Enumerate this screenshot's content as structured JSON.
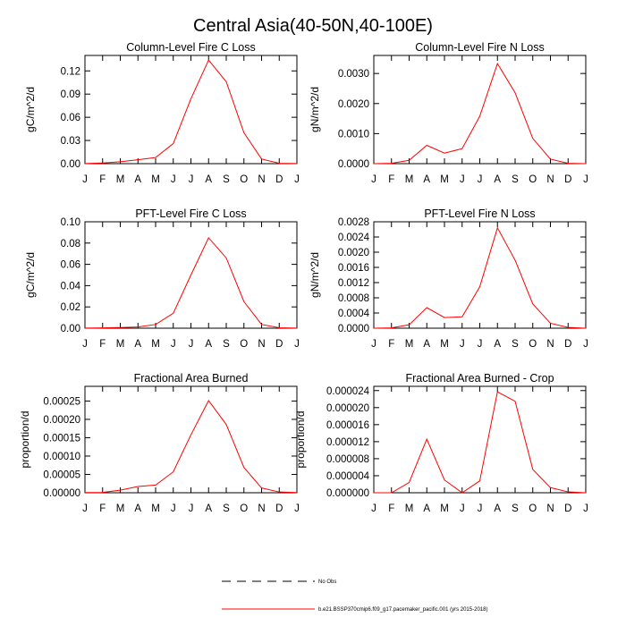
{
  "figure": {
    "title": "Central Asia(40-50N,40-100E)"
  },
  "colors": {
    "model": "#ff0000",
    "obs": "#000000",
    "axis": "#000000",
    "background": "#ffffff"
  },
  "legend": {
    "obs_label": "No Obs",
    "model_label": "b.e21.BSSP370cmip6.f09_g17.pacemaker_pacific.001 (yrs 2015-2018)"
  },
  "chart_data": [
    {
      "type": "line",
      "title": "Column-Level Fire C Loss",
      "ylabel": "gC/m^2/d",
      "xlabel": "",
      "categories": [
        "J",
        "F",
        "M",
        "A",
        "M",
        "J",
        "J",
        "A",
        "S",
        "O",
        "N",
        "D",
        "J"
      ],
      "ylim": [
        0,
        0.14
      ],
      "yticks": [
        "0.00",
        "0.03",
        "0.06",
        "0.09",
        "0.12"
      ],
      "series": [
        {
          "name": "b.e21.BSSP370cmip6.f09_g17.pacemaker_pacific.001 (yrs 2015-2018)",
          "values": [
            0.0002,
            0.0008,
            0.0025,
            0.005,
            0.008,
            0.026,
            0.084,
            0.134,
            0.106,
            0.04,
            0.006,
            0.0005,
            0.0001
          ]
        }
      ]
    },
    {
      "type": "line",
      "title": "Column-Level Fire N Loss",
      "ylabel": "gN/m^2/d",
      "xlabel": "",
      "categories": [
        "J",
        "F",
        "M",
        "A",
        "M",
        "J",
        "J",
        "A",
        "S",
        "O",
        "N",
        "D",
        "J"
      ],
      "ylim": [
        0,
        0.0036
      ],
      "yticks": [
        "0.0000",
        "0.0010",
        "0.0020",
        "0.0030"
      ],
      "series": [
        {
          "name": "b.e21.BSSP370cmip6.f09_g17.pacemaker_pacific.001 (yrs 2015-2018)",
          "values": [
            0.0,
            1e-05,
            0.00011,
            0.00061,
            0.00035,
            0.0005,
            0.00158,
            0.00333,
            0.00236,
            0.00084,
            0.00015,
            1e-05,
            0.0
          ]
        }
      ]
    },
    {
      "type": "line",
      "title": "PFT-Level Fire C Loss",
      "ylabel": "gC/m^2/d",
      "xlabel": "",
      "categories": [
        "J",
        "F",
        "M",
        "A",
        "M",
        "J",
        "J",
        "A",
        "S",
        "O",
        "N",
        "D",
        "J"
      ],
      "ylim": [
        0,
        0.1
      ],
      "yticks": [
        "0.00",
        "0.02",
        "0.04",
        "0.06",
        "0.08",
        "0.10"
      ],
      "series": [
        {
          "name": "b.e21.BSSP370cmip6.f09_g17.pacemaker_pacific.001 (yrs 2015-2018)",
          "values": [
            0.0001,
            0.0003,
            0.0006,
            0.0012,
            0.0035,
            0.014,
            0.05,
            0.085,
            0.066,
            0.025,
            0.0035,
            0.0004,
            0.0001
          ]
        }
      ]
    },
    {
      "type": "line",
      "title": "PFT-Level Fire N Loss",
      "ylabel": "gN/m^2/d",
      "xlabel": "",
      "categories": [
        "J",
        "F",
        "M",
        "A",
        "M",
        "J",
        "J",
        "A",
        "S",
        "O",
        "N",
        "D",
        "J"
      ],
      "ylim": [
        0,
        0.0028
      ],
      "yticks": [
        "0.0000",
        "0.0004",
        "0.0008",
        "0.0012",
        "0.0016",
        "0.0020",
        "0.0024",
        "0.0028"
      ],
      "series": [
        {
          "name": "b.e21.BSSP370cmip6.f09_g17.pacemaker_pacific.001 (yrs 2015-2018)",
          "values": [
            0.0,
            1e-05,
            9e-05,
            0.00054,
            0.00028,
            0.0003,
            0.00109,
            0.00264,
            0.00179,
            0.00064,
            0.00013,
            2e-05,
            0.0
          ]
        }
      ]
    },
    {
      "type": "line",
      "title": "Fractional Area Burned",
      "ylabel": "proportion/d",
      "xlabel": "",
      "categories": [
        "J",
        "F",
        "M",
        "A",
        "M",
        "J",
        "J",
        "A",
        "S",
        "O",
        "N",
        "D",
        "J"
      ],
      "ylim": [
        0,
        0.00029
      ],
      "yticks": [
        "0.00000",
        "0.00005",
        "0.00010",
        "0.00015",
        "0.00020",
        "0.00025"
      ],
      "series": [
        {
          "name": "b.e21.BSSP370cmip6.f09_g17.pacemaker_pacific.001 (yrs 2015-2018)",
          "values": [
            5e-07,
            1e-06,
            7e-06,
            1.7e-05,
            2.1e-05,
            5.7e-05,
            0.000158,
            0.000251,
            0.000186,
            6.9e-05,
            1.3e-05,
            2e-06,
            5e-07
          ]
        }
      ]
    },
    {
      "type": "line",
      "title": "Fractional Area Burned - Crop",
      "ylabel": "proportion/d",
      "xlabel": "",
      "categories": [
        "J",
        "F",
        "M",
        "A",
        "M",
        "J",
        "J",
        "A",
        "S",
        "O",
        "N",
        "D",
        "J"
      ],
      "ylim": [
        0,
        2.5e-05
      ],
      "yticks": [
        "0.000000",
        "0.000004",
        "0.000008",
        "0.000012",
        "0.000016",
        "0.000020",
        "0.000024"
      ],
      "series": [
        {
          "name": "b.e21.BSSP370cmip6.f09_g17.pacemaker_pacific.001 (yrs 2015-2018)",
          "values": [
            0.0,
            0.0,
            2.4e-06,
            1.26e-05,
            3e-06,
            0.0,
            2.8e-06,
            2.37e-05,
            2.15e-05,
            5.5e-06,
            1.2e-06,
            2e-07,
            0.0
          ]
        }
      ]
    }
  ]
}
